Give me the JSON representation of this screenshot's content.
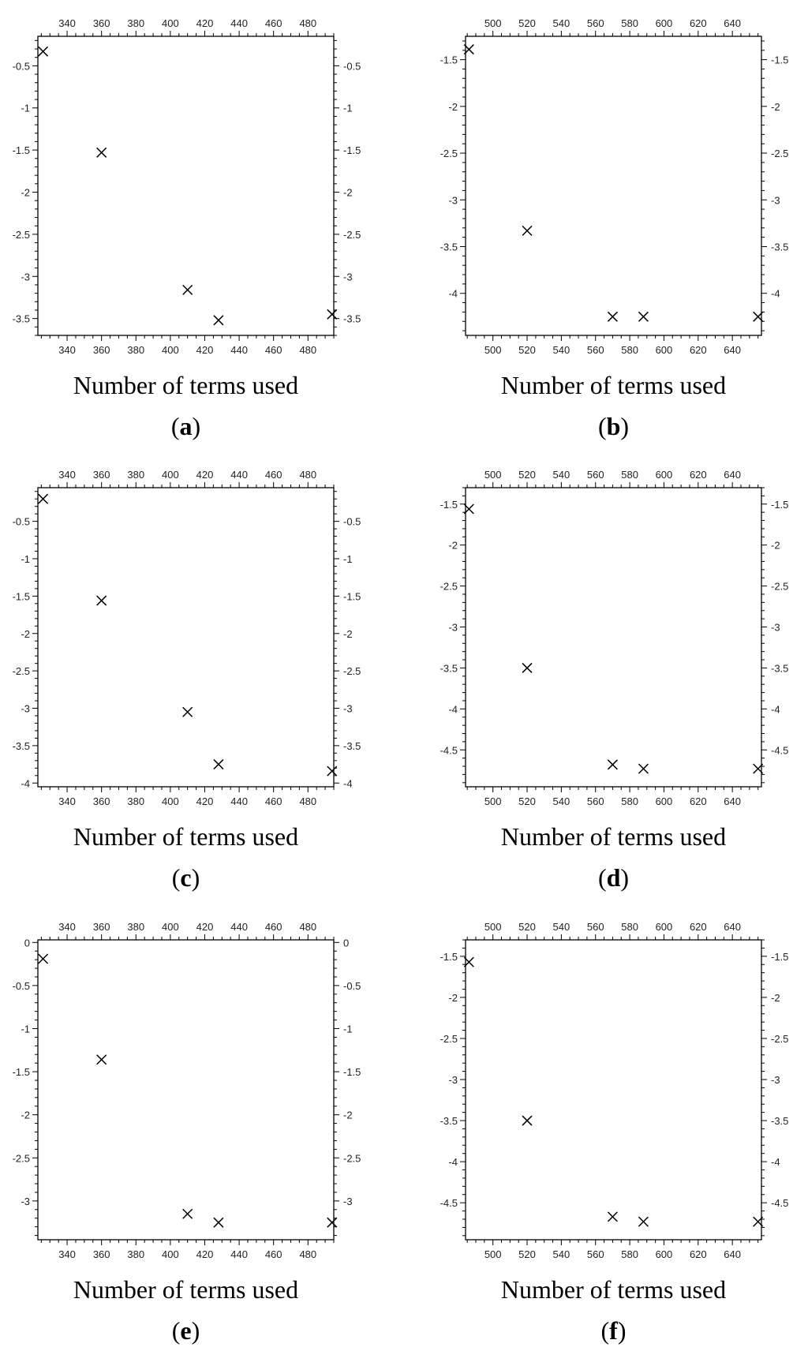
{
  "chart_data": [
    {
      "panel": "a",
      "type": "scatter",
      "marker": "x",
      "xlabel": "Number of terms used",
      "ylabel": "",
      "xlim": [
        323,
        495
      ],
      "ylim": [
        -3.7,
        -0.15
      ],
      "xticks": [
        340,
        360,
        380,
        400,
        420,
        440,
        460,
        480
      ],
      "yticks": [
        -0.5,
        -1,
        -1.5,
        -2,
        -2.5,
        -3,
        -3.5
      ],
      "x": [
        326,
        360,
        410,
        428,
        494
      ],
      "y": [
        -0.33,
        -1.53,
        -3.16,
        -3.52,
        -3.45
      ]
    },
    {
      "panel": "b",
      "type": "scatter",
      "marker": "x",
      "xlabel": "Number of terms used",
      "ylabel": "",
      "xlim": [
        484,
        657
      ],
      "ylim": [
        -4.45,
        -1.25
      ],
      "xticks": [
        500,
        520,
        540,
        560,
        580,
        600,
        620,
        640
      ],
      "yticks": [
        -1.5,
        -2,
        -2.5,
        -3,
        -3.5,
        -4
      ],
      "x": [
        486,
        520,
        570,
        588,
        655
      ],
      "y": [
        -1.39,
        -3.33,
        -4.25,
        -4.25,
        -4.25
      ]
    },
    {
      "panel": "c",
      "type": "scatter",
      "marker": "x",
      "xlabel": "Number of terms used",
      "ylabel": "",
      "xlim": [
        323,
        495
      ],
      "ylim": [
        -4.05,
        -0.05
      ],
      "xticks": [
        340,
        360,
        380,
        400,
        420,
        440,
        460,
        480
      ],
      "yticks": [
        -0.5,
        -1,
        -1.5,
        -2,
        -2.5,
        -3,
        -3.5,
        -4
      ],
      "x": [
        326,
        360,
        410,
        428,
        494
      ],
      "y": [
        -0.2,
        -1.56,
        -3.05,
        -3.75,
        -3.84
      ]
    },
    {
      "panel": "d",
      "type": "scatter",
      "marker": "x",
      "xlabel": "Number of terms used",
      "ylabel": "",
      "xlim": [
        484,
        657
      ],
      "ylim": [
        -4.95,
        -1.3
      ],
      "xticks": [
        500,
        520,
        540,
        560,
        580,
        600,
        620,
        640
      ],
      "yticks": [
        -1.5,
        -2,
        -2.5,
        -3,
        -3.5,
        -4,
        -4.5
      ],
      "x": [
        486,
        520,
        570,
        588,
        655
      ],
      "y": [
        -1.56,
        -3.5,
        -4.68,
        -4.73,
        -4.73
      ]
    },
    {
      "panel": "e",
      "type": "scatter",
      "marker": "x",
      "xlabel": "Number of terms used",
      "ylabel": "",
      "xlim": [
        323,
        495
      ],
      "ylim": [
        -3.45,
        0.03
      ],
      "xticks": [
        340,
        360,
        380,
        400,
        420,
        440,
        460,
        480
      ],
      "yticks": [
        0,
        -0.5,
        -1,
        -1.5,
        -2,
        -2.5,
        -3
      ],
      "x": [
        326,
        360,
        410,
        428,
        494
      ],
      "y": [
        -0.19,
        -1.36,
        -3.15,
        -3.25,
        -3.25
      ]
    },
    {
      "panel": "f",
      "type": "scatter",
      "marker": "x",
      "xlabel": "Number of terms used",
      "ylabel": "",
      "xlim": [
        484,
        657
      ],
      "ylim": [
        -4.95,
        -1.3
      ],
      "xticks": [
        500,
        520,
        540,
        560,
        580,
        600,
        620,
        640
      ],
      "yticks": [
        -1.5,
        -2,
        -2.5,
        -3,
        -3.5,
        -4,
        -4.5
      ],
      "x": [
        486,
        520,
        570,
        588,
        655
      ],
      "y": [
        -1.57,
        -3.5,
        -4.67,
        -4.73,
        -4.73
      ]
    }
  ],
  "panel_captions": [
    {
      "open": "(",
      "letter": "a",
      "close": ")"
    },
    {
      "open": "(",
      "letter": "b",
      "close": ")"
    },
    {
      "open": "(",
      "letter": "c",
      "close": ")"
    },
    {
      "open": "(",
      "letter": "d",
      "close": ")"
    },
    {
      "open": "(",
      "letter": "e",
      "close": ")"
    },
    {
      "open": "(",
      "letter": "f",
      "close": ")"
    }
  ],
  "colors": {
    "axis": "#000000",
    "marker": "#000000",
    "text": "#222222"
  }
}
